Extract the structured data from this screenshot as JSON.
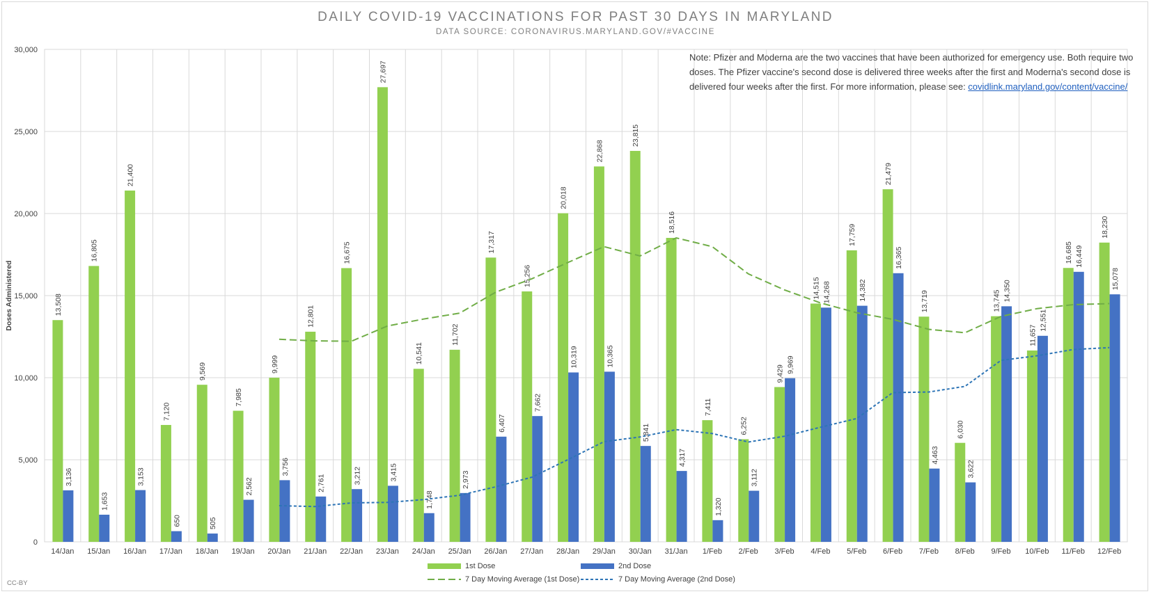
{
  "chart_data": {
    "type": "bar",
    "title": "DAILY COVID-19 VACCINATIONS FOR PAST 30 DAYS IN MARYLAND",
    "subtitle": "DATA SOURCE: CORONAVIRUS.MARYLAND.GOV/#VACCINE",
    "ylabel": "Doses Administered",
    "ylim": [
      0,
      30000
    ],
    "yticks": [
      0,
      5000,
      10000,
      15000,
      20000,
      25000,
      30000
    ],
    "ytick_labels": [
      "0",
      "5,000",
      "10,000",
      "15,000",
      "20,000",
      "25,000",
      "30,000"
    ],
    "grid": true,
    "legend_position": "bottom",
    "categories": [
      "14/Jan",
      "15/Jan",
      "16/Jan",
      "17/Jan",
      "18/Jan",
      "19/Jan",
      "20/Jan",
      "21/Jan",
      "22/Jan",
      "23/Jan",
      "24/Jan",
      "25/Jan",
      "26/Jan",
      "27/Jan",
      "28/Jan",
      "29/Jan",
      "30/Jan",
      "31/Jan",
      "1/Feb",
      "2/Feb",
      "3/Feb",
      "4/Feb",
      "5/Feb",
      "6/Feb",
      "7/Feb",
      "8/Feb",
      "9/Feb",
      "10/Feb",
      "11/Feb",
      "12/Feb"
    ],
    "series": [
      {
        "name": "1st Dose",
        "kind": "bar",
        "color": "#92d050",
        "values": [
          13508,
          16805,
          21400,
          7120,
          9569,
          7985,
          9999,
          12801,
          16675,
          27697,
          10541,
          11702,
          17317,
          15256,
          20018,
          22868,
          23815,
          18516,
          7411,
          6252,
          9429,
          14515,
          17759,
          21479,
          13719,
          6030,
          13745,
          11657,
          16685,
          18230
        ],
        "labels": [
          "13,508",
          "16,805",
          "21,400",
          "7,120",
          "9,569",
          "7,985",
          "9,999",
          "12,801",
          "16,675",
          "27,697",
          "10,541",
          "11,702",
          "17,317",
          "15,256",
          "20,018",
          "22,868",
          "23,815",
          "18,516",
          "7,411",
          "6,252",
          "9,429",
          "14,515",
          "17,759",
          "21,479",
          "13,719",
          "6,030",
          "13,745",
          "11,657",
          "16,685",
          "18,230"
        ]
      },
      {
        "name": "2nd Dose",
        "kind": "bar",
        "color": "#4472c4",
        "values": [
          3136,
          1653,
          3153,
          650,
          505,
          2562,
          3756,
          2761,
          3212,
          3415,
          1748,
          2973,
          6407,
          7662,
          10319,
          10365,
          5841,
          4317,
          1320,
          3112,
          9969,
          14268,
          14382,
          16365,
          4463,
          3622,
          14350,
          12551,
          16449,
          15078
        ],
        "labels": [
          "3,136",
          "1,653",
          "3,153",
          "650",
          "505",
          "2,562",
          "3,756",
          "2,761",
          "3,212",
          "3,415",
          "1,748",
          "2,973",
          "6,407",
          "7,662",
          "10,319",
          "10,365",
          "5,841",
          "4,317",
          "1,320",
          "3,112",
          "9,969",
          "14,268",
          "14,382",
          "16,365",
          "4,463",
          "3,622",
          "14,350",
          "12,551",
          "16,449",
          "15,078"
        ]
      },
      {
        "name": "7 Day Moving Average (1st Dose)",
        "kind": "line",
        "dash": "long",
        "color": "#70ad47",
        "values": [
          null,
          null,
          null,
          null,
          null,
          null,
          12341,
          12240,
          12222,
          13147,
          13573,
          13932,
          15209,
          16027,
          17015,
          17985,
          17417,
          18518,
          17981,
          16320,
          15349,
          14553,
          13957,
          13557,
          12943,
          12737,
          13732,
          14209,
          14451,
          14512
        ]
      },
      {
        "name": "7 Day Moving Average (2nd Dose)",
        "kind": "line",
        "dash": "short",
        "color": "#2e75b6",
        "values": [
          null,
          null,
          null,
          null,
          null,
          null,
          2202,
          2149,
          2373,
          2402,
          2573,
          2838,
          3353,
          3936,
          5007,
          6101,
          6388,
          6833,
          6597,
          6082,
          6432,
          6983,
          7514,
          9090,
          9129,
          9469,
          11055,
          11333,
          11716,
          11831
        ]
      }
    ]
  },
  "note": {
    "text": "Note: Pfizer and Moderna are the two vaccines that have been authorized for emergency use. Both require two doses. The Pfizer vaccine's second dose is delivered three weeks after the first and Moderna's second dose is delivered four weeks after the first. For more information, please see: ",
    "link_text": "covidlink.maryland.gov/content/vaccine/"
  },
  "license": "CC-BY"
}
